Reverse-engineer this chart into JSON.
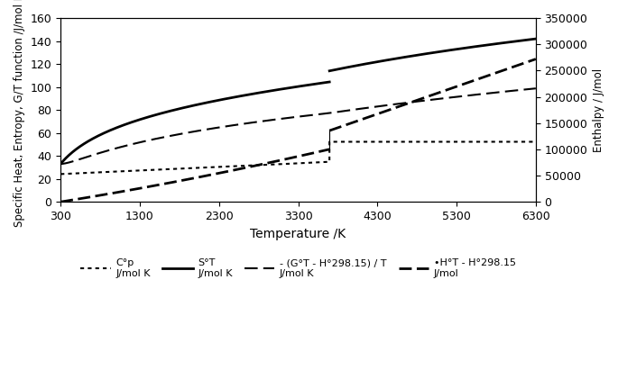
{
  "T_min": 300,
  "T_max": 6300,
  "T_transition": 3695,
  "xlim": [
    300,
    6300
  ],
  "xticks": [
    300,
    1300,
    2300,
    3300,
    4300,
    5300,
    6300
  ],
  "left_ylim": [
    0,
    160
  ],
  "left_yticks": [
    0,
    20,
    40,
    60,
    80,
    100,
    120,
    140,
    160
  ],
  "right_ylim": [
    0,
    350000
  ],
  "right_yticks": [
    0,
    50000,
    100000,
    150000,
    200000,
    250000,
    300000,
    350000
  ],
  "xlabel": "Temperature /K",
  "left_ylabel": "Specific Heat, Entropy, G/T function /J/mol K",
  "right_ylabel": "Enthalpy / J/mol",
  "background_color": "#ffffff",
  "line_color": "#000000",
  "lw_thin": 1.5,
  "lw_thick": 2.0,
  "latent_heat": 35500,
  "S298": 33.0,
  "Cp_liquid": 52.3
}
